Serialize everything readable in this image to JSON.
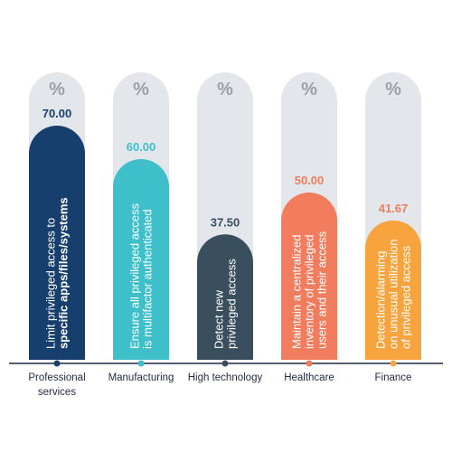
{
  "chart_data": {
    "type": "bar",
    "ylim": [
      0,
      100
    ],
    "track_symbol": "%",
    "categories": [
      "Professional services",
      "Manufacturing",
      "High technology",
      "Healthcare",
      "Finance"
    ],
    "category_lines": [
      [
        "Professional",
        "services"
      ],
      [
        "Manufacturing"
      ],
      [
        "High technology"
      ],
      [
        "Healthcare"
      ],
      [
        "Finance"
      ]
    ],
    "values": [
      70.0,
      60.0,
      37.5,
      50.0,
      41.67
    ],
    "value_labels": [
      "70.00",
      "60.00",
      "37.50",
      "50.00",
      "41.67"
    ],
    "bar_text": [
      [
        "Limit privileged access to",
        "specific apps/files/systems"
      ],
      [
        "Ensure all privileged access",
        "is multifactor authenticated"
      ],
      [
        "Detect new",
        "privileged access"
      ],
      [
        "Maintain a centralized",
        "inventory of privileged",
        "users and their access"
      ],
      [
        "Detection/alarming",
        "on unusual utilization",
        "of privileged access"
      ]
    ],
    "colors": [
      "#173f6e",
      "#3fbfc9",
      "#3a4f5d",
      "#f27c5e",
      "#f7a43f"
    ],
    "value_label_colors": [
      "#173f6e",
      "#3fbfc9",
      "#3a4f5d",
      "#f27c5e",
      "#f27c5e"
    ],
    "track_color": "#e3e6ea",
    "track_symbol_color": "#9aa1a9",
    "axis_color": "#1f2a44"
  }
}
